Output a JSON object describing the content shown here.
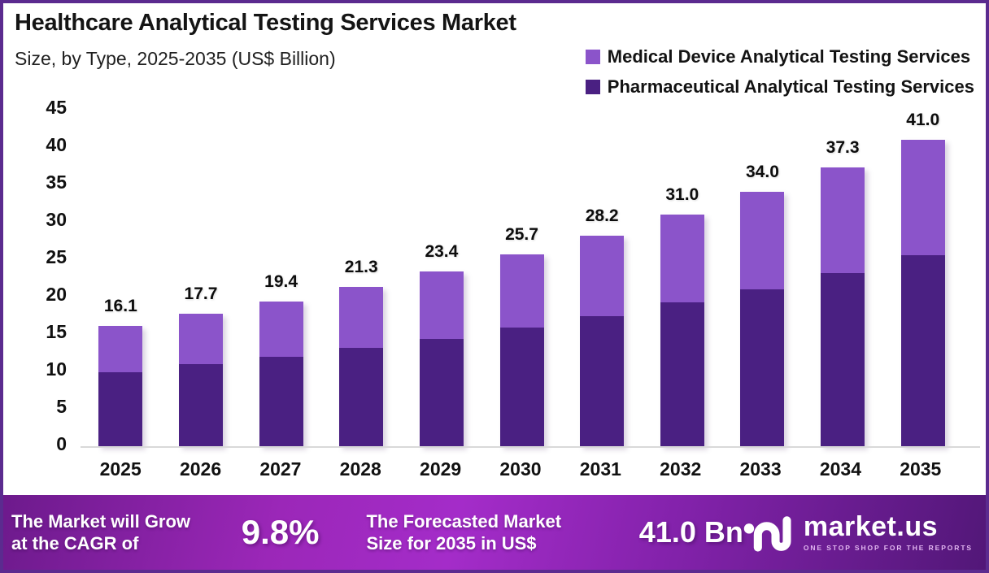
{
  "header": {
    "title": "Healthcare Analytical Testing Services Market",
    "subtitle": "Size, by Type, 2025-2035 (US$ Billion)"
  },
  "legend": [
    {
      "label": "Medical Device Analytical Testing Services",
      "color": "#8b54ca"
    },
    {
      "label": "Pharmaceutical Analytical Testing Services",
      "color": "#4a2082"
    }
  ],
  "colors": {
    "medical_device": "#8b54ca",
    "pharmaceutical": "#4a2082",
    "frame_border": "#5b2b8f",
    "axis_line": "#d9d9d9",
    "banner_purple": "#a42cc9"
  },
  "chart_data": {
    "type": "bar",
    "stacked": true,
    "title": "Healthcare Analytical Testing Services Market Size, by Type, 2025-2035 (US$ Billion)",
    "categories": [
      "2025",
      "2026",
      "2027",
      "2028",
      "2029",
      "2030",
      "2031",
      "2032",
      "2033",
      "2034",
      "2035"
    ],
    "series": [
      {
        "name": "Pharmaceutical Analytical Testing Services",
        "color": "#4a2082",
        "values": [
          9.9,
          11.0,
          12.0,
          13.2,
          14.4,
          15.9,
          17.4,
          19.2,
          21.0,
          23.1,
          25.5
        ]
      },
      {
        "name": "Medical Device Analytical Testing Services",
        "color": "#8b54ca",
        "values": [
          6.2,
          6.7,
          7.4,
          8.1,
          9.0,
          9.8,
          10.8,
          11.8,
          13.0,
          14.2,
          15.5
        ]
      }
    ],
    "totals": [
      16.1,
      17.7,
      19.4,
      21.3,
      23.4,
      25.7,
      28.2,
      31.0,
      34.0,
      37.3,
      41.0
    ],
    "total_labels": [
      "16.1",
      "17.7",
      "19.4",
      "21.3",
      "23.4",
      "25.7",
      "28.2",
      "31.0",
      "34.0",
      "37.3",
      "41.0"
    ],
    "xlabel": "",
    "ylabel": "",
    "ylim": [
      0,
      45
    ],
    "yticks": [
      0,
      5,
      10,
      15,
      20,
      25,
      30,
      35,
      40,
      45
    ],
    "grid": false,
    "legend_position": "top-right"
  },
  "footer": {
    "cagr_label": "The Market will Grow\nat the CAGR of",
    "cagr_value": "9.8%",
    "forecast_label": "The Forecasted Market\nSize for 2035 in US$",
    "forecast_value": "41.0 Bn",
    "brand": {
      "name": "market.us",
      "tagline": "ONE STOP SHOP FOR THE REPORTS"
    }
  }
}
